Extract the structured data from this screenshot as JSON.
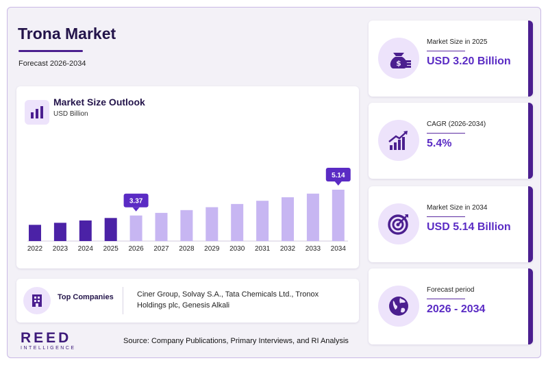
{
  "header": {
    "title": "Trona Market",
    "subtitle": "Forecast 2026-2034"
  },
  "chart_card": {
    "title": "Market Size Outlook",
    "unit": "USD Billion"
  },
  "chart_data": {
    "type": "bar",
    "title": "Market Size Outlook",
    "ylabel": "USD Billion",
    "categories": [
      "2022",
      "2023",
      "2024",
      "2025",
      "2026",
      "2027",
      "2028",
      "2029",
      "2030",
      "2031",
      "2032",
      "2033",
      "2034"
    ],
    "values": [
      2.73,
      2.87,
      3.03,
      3.2,
      3.37,
      3.55,
      3.74,
      3.94,
      4.16,
      4.38,
      4.62,
      4.87,
      5.14
    ],
    "historical_years": [
      "2022",
      "2023",
      "2024",
      "2025"
    ],
    "forecast_years": [
      "2026",
      "2027",
      "2028",
      "2029",
      "2030",
      "2031",
      "2032",
      "2033",
      "2034"
    ],
    "callouts": [
      {
        "category": "2026",
        "label": "3.37"
      },
      {
        "category": "2034",
        "label": "5.14"
      }
    ],
    "ylim": [
      0,
      5.6
    ],
    "grid": false,
    "colors": {
      "historical": "#4b22a6",
      "forecast": "#c7b6f2",
      "callout": "#5a2bc4"
    }
  },
  "companies": {
    "label": "Top Companies",
    "text": "Ciner Group, Solvay S.A., Tata Chemicals Ltd., Tronox Holdings plc, Genesis Alkali"
  },
  "logo": {
    "main": "REED",
    "sub": "INTELLIGENCE"
  },
  "source": "Source: Company Publications, Primary Interviews, and RI Analysis",
  "stats": [
    {
      "label": "Market Size in 2025",
      "value": "USD 3.20 Billion",
      "icon": "money-bag-icon"
    },
    {
      "label": "CAGR (2026-2034)",
      "value": "5.4%",
      "icon": "growth-chart-icon"
    },
    {
      "label": "Market Size in 2034",
      "value": "USD 5.14 Billion",
      "icon": "target-icon"
    },
    {
      "label": "Forecast period",
      "value": "2026 - 2034",
      "icon": "globe-icon"
    }
  ],
  "theme": {
    "accent": "#4b1f8f",
    "value_color": "#5a2bc4",
    "icon_bg": "#ede3fb"
  }
}
